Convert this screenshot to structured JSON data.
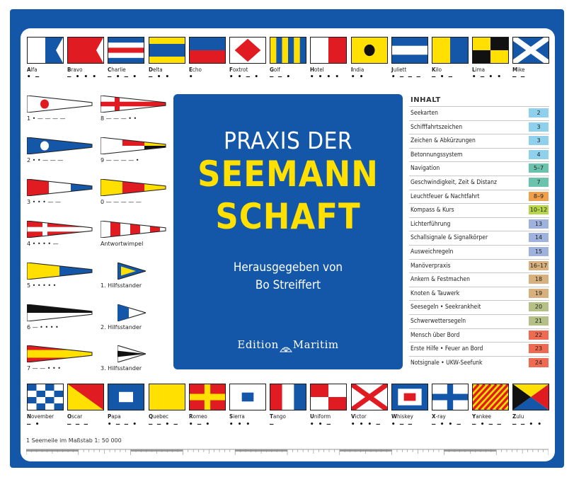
{
  "cover": {
    "title_line1": "PRAXIS DER",
    "title_line2": "SEEMANN",
    "title_line3": "SCHAFT",
    "editor_line1": "Herausgegeben von",
    "editor_line2": "Bo Streiffert",
    "publisher_part1": "Edition",
    "publisher_part2": "Maritim"
  },
  "top_flags": [
    {
      "letter": "A",
      "rest": "lfa",
      "morse": "• —"
    },
    {
      "letter": "B",
      "rest": "ravo",
      "morse": "— • • •"
    },
    {
      "letter": "C",
      "rest": "harlie",
      "morse": "— • — •"
    },
    {
      "letter": "D",
      "rest": "elta",
      "morse": "— • •"
    },
    {
      "letter": "E",
      "rest": "cho",
      "morse": "•"
    },
    {
      "letter": "F",
      "rest": "oxtrot",
      "morse": "• • — •"
    },
    {
      "letter": "G",
      "rest": "olf",
      "morse": "— — •"
    },
    {
      "letter": "H",
      "rest": "otel",
      "morse": "• • • •"
    },
    {
      "letter": "I",
      "rest": "ndia",
      "morse": "• •"
    },
    {
      "letter": "J",
      "rest": "uliett",
      "morse": "• — — —"
    },
    {
      "letter": "K",
      "rest": "ilo",
      "morse": "— • —"
    },
    {
      "letter": "L",
      "rest": "ima",
      "morse": "• — • •"
    },
    {
      "letter": "M",
      "rest": "ike",
      "morse": "— —"
    }
  ],
  "bottom_flags": [
    {
      "letter": "N",
      "rest": "ovember",
      "morse": "— •"
    },
    {
      "letter": "O",
      "rest": "scar",
      "morse": "— — —"
    },
    {
      "letter": "P",
      "rest": "apa",
      "morse": "• — — •"
    },
    {
      "letter": "Q",
      "rest": "uebec",
      "morse": "— — • —"
    },
    {
      "letter": "R",
      "rest": "omeo",
      "morse": "• — •"
    },
    {
      "letter": "S",
      "rest": "ierra",
      "morse": "• • •"
    },
    {
      "letter": "T",
      "rest": "ango",
      "morse": "—"
    },
    {
      "letter": "U",
      "rest": "niform",
      "morse": "• • —"
    },
    {
      "letter": "V",
      "rest": "ictor",
      "morse": "• • • —"
    },
    {
      "letter": "W",
      "rest": "hiskey",
      "morse": "• — —"
    },
    {
      "letter": "X",
      "rest": "-ray",
      "morse": "— • • —"
    },
    {
      "letter": "Y",
      "rest": "ankee",
      "morse": "— • — —"
    },
    {
      "letter": "Z",
      "rest": "ulu",
      "morse": "— — • •"
    }
  ],
  "pennants_left": [
    {
      "label": "1 • — — — —"
    },
    {
      "label": "2 • • — — —"
    },
    {
      "label": "3 • • • — —"
    },
    {
      "label": "4 • • • • —"
    },
    {
      "label": "5 • • • • •"
    },
    {
      "label": "6 — • • • •"
    },
    {
      "label": "7 — — • • •"
    }
  ],
  "pennants_right": [
    {
      "label": "8 — — — • •"
    },
    {
      "label": "9 — — — — •"
    },
    {
      "label": "0 — — — — —"
    },
    {
      "label": "Antwortwimpel"
    },
    {
      "label": "1. Hilfsstander"
    },
    {
      "label": "2. Hilfsstander"
    },
    {
      "label": "3. Hilfsstander"
    }
  ],
  "toc": {
    "heading": "INHALT",
    "items": [
      {
        "label": "Seekarten",
        "page": "2",
        "color": "#8fd0ec"
      },
      {
        "label": "Schifffahrtszeichen",
        "page": "3",
        "color": "#8fd0ec"
      },
      {
        "label": "Zeichen & Abkürzungen",
        "page": "3",
        "color": "#8fd0ec"
      },
      {
        "label": "Betonnungssystem",
        "page": "4",
        "color": "#8fd0ec"
      },
      {
        "label": "Navigation",
        "page": "5–7",
        "color": "#6cc3ad"
      },
      {
        "label": "Geschwindigkeit, Zeit & Distanz",
        "page": "7",
        "color": "#6cc3ad"
      },
      {
        "label": "Leuchtfeuer & Nachtfahrt",
        "page": "8–9",
        "color": "#f0a04a"
      },
      {
        "label": "Kompass & Kurs",
        "page": "10–12",
        "color": "#b7d54a"
      },
      {
        "label": "Lichterführung",
        "page": "13",
        "color": "#9fb2dd"
      },
      {
        "label": "Schallsignale & Signalkörper",
        "page": "14",
        "color": "#9fb2dd"
      },
      {
        "label": "Ausweichregeln",
        "page": "15",
        "color": "#9fb2dd"
      },
      {
        "label": "Manöverpraxis",
        "page": "16–17",
        "color": "#d8b07e"
      },
      {
        "label": "Ankern & Festmachen",
        "page": "18",
        "color": "#d8b07e"
      },
      {
        "label": "Knoten & Tauwerk",
        "page": "19",
        "color": "#d8b07e"
      },
      {
        "label": "Seesegeln • Seekrankheit",
        "page": "20",
        "color": "#b4c086"
      },
      {
        "label": "Schwerwettersegeln",
        "page": "21",
        "color": "#b4c086"
      },
      {
        "label": "Mensch über Bord",
        "page": "22",
        "color": "#ee6a50"
      },
      {
        "label": "Erste Hilfe • Feuer an Bord",
        "page": "23",
        "color": "#ee6a50"
      },
      {
        "label": "Notsignale • UKW-Seefunk",
        "page": "24",
        "color": "#ee6a50"
      }
    ]
  },
  "scale": {
    "label": "1 Seemeile im Maßstab 1: 50 000"
  },
  "colors": {
    "blue": "#1457a8",
    "red": "#e11b22",
    "yellow": "#ffe000",
    "black": "#111111",
    "white": "#ffffff"
  }
}
